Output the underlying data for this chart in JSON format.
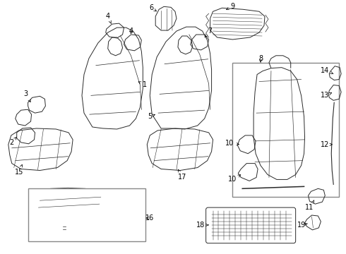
{
  "background_color": "#ffffff",
  "line_color": "#2a2a2a",
  "text_color": "#000000",
  "figsize": [
    4.9,
    3.6
  ],
  "dpi": 100
}
